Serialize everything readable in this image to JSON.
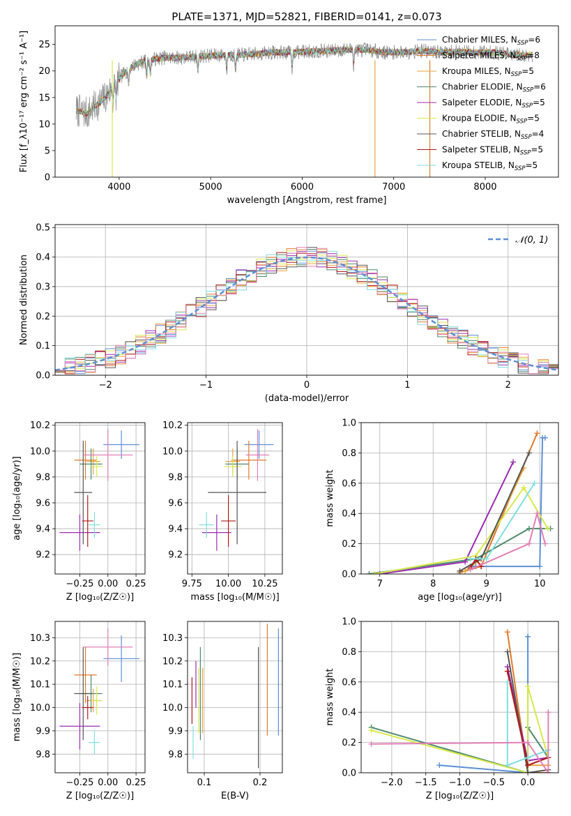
{
  "title": "PLATE=1371, MJD=52821, FIBERID=0141, z=0.073",
  "colors": {
    "chabrier_miles": "#5b8fd6",
    "salpeter_miles": "#e07a2a",
    "kroupa_miles": "#e8a23a",
    "chabrier_elodie": "#4d8a6c",
    "salpeter_elodie": "#9a2bb0",
    "kroupa_elodie": "#d8e84a",
    "chabrier_stelib": "#555555",
    "salpeter_stelib": "#b01818",
    "kroupa_stelib": "#80dede",
    "pink": "#e27fb5",
    "data": "#888888",
    "normal_curve": "#5b8fd6",
    "grid": "#b0b0b0"
  },
  "chart_data": [
    {
      "id": "spectrum",
      "type": "line",
      "xlabel": "wavelength [Angstrom, rest frame]",
      "ylabel": "Flux [f_λ10⁻¹⁷ erg cm⁻² s⁻¹ A⁻¹]",
      "xlim": [
        3300,
        8800
      ],
      "ylim": [
        0,
        28.5
      ],
      "xticks": [
        "4000",
        "5000",
        "6000",
        "7000",
        "8000"
      ],
      "yticks": [
        "0",
        "5",
        "10",
        "15",
        "20",
        "25"
      ],
      "legend_position": "top-right",
      "legend": [
        "Chabrier MILES, N_SSP=6",
        "Salpeter MILES, N_SSP=8",
        "Kroupa MILES, N_SSP=5",
        "Chabrier ELODIE, N_SSP=6",
        "Salpeter ELODIE, N_SSP=5",
        "Kroupa ELODIE, N_SSP=5",
        "Chabrier STELIB, N_SSP=4",
        "Salpeter STELIB, N_SSP=5",
        "Kroupa STELIB, N_SSP=5"
      ],
      "continuum": {
        "x": [
          3550,
          3650,
          3750,
          3850,
          3950,
          4050,
          4150,
          4300,
          4500,
          4700,
          4900,
          5100,
          5300,
          5500,
          5700,
          5900,
          6100,
          6300,
          6500,
          6700,
          6900,
          7100,
          7300,
          7500,
          7700,
          7900,
          8100,
          8300,
          8500
        ],
        "y": [
          12.5,
          12.0,
          13.5,
          15.0,
          17.5,
          19.5,
          21.0,
          22.0,
          22.5,
          22.5,
          22.8,
          23.0,
          23.0,
          23.2,
          23.5,
          23.5,
          23.7,
          23.8,
          24.0,
          24.0,
          23.5,
          23.5,
          23.8,
          23.5,
          23.6,
          23.5,
          23.5,
          23.0,
          23.0
        ]
      }
    },
    {
      "id": "residuals",
      "type": "histogram",
      "xlabel": "(data-model)/error",
      "ylabel": "Normed distribution",
      "xlim": [
        -2.5,
        2.5
      ],
      "ylim": [
        0,
        0.51
      ],
      "xticks": [
        "−2",
        "−1",
        "0",
        "1",
        "2"
      ],
      "yticks": [
        "0.0",
        "0.1",
        "0.2",
        "0.3",
        "0.4",
        "0.5"
      ],
      "legend": [
        "𝒩(0, 1)"
      ],
      "legend_position": "top-right",
      "bin_width": 0.1,
      "n_bins": 50
    },
    {
      "id": "age_vs_Z",
      "type": "errorbar",
      "xlabel": "Z [log₁₀(Z/Z☉)]",
      "ylabel": "age  [log₁₀(age/yr)]",
      "xlim": [
        -0.47,
        0.33
      ],
      "ylim": [
        9.05,
        10.22
      ],
      "xticks": [
        "−0.25",
        "0.00",
        "0.25"
      ],
      "yticks": [
        "9.2",
        "9.4",
        "9.6",
        "9.8",
        "10.0",
        "10.2"
      ],
      "points": [
        {
          "color": "chabrier_miles",
          "x": 0.12,
          "xerr": 0.16,
          "y": 10.05,
          "yerr": 0.11
        },
        {
          "color": "salpeter_miles",
          "x": -0.2,
          "xerr": 0.1,
          "y": 9.93,
          "yerr": 0.15
        },
        {
          "color": "kroupa_miles",
          "x": -0.13,
          "xerr": 0.06,
          "y": 9.92,
          "yerr": 0.1
        },
        {
          "color": "chabrier_elodie",
          "x": -0.15,
          "xerr": 0.1,
          "y": 9.9,
          "yerr": 0.12
        },
        {
          "color": "salpeter_elodie",
          "x": -0.25,
          "xerr": 0.18,
          "y": 9.37,
          "yerr": 0.14
        },
        {
          "color": "kroupa_elodie",
          "x": -0.1,
          "xerr": 0.05,
          "y": 9.88,
          "yerr": 0.08
        },
        {
          "color": "chabrier_stelib",
          "x": -0.22,
          "xerr": 0.08,
          "y": 9.68,
          "yerr": 0.4
        },
        {
          "color": "salpeter_stelib",
          "x": -0.18,
          "xerr": 0.05,
          "y": 9.46,
          "yerr": 0.2
        },
        {
          "color": "kroupa_stelib",
          "x": -0.12,
          "xerr": 0.05,
          "y": 9.43,
          "yerr": 0.1
        },
        {
          "color": "pink",
          "x": 0.0,
          "xerr": 0.22,
          "y": 9.97,
          "yerr": 0.2
        }
      ]
    },
    {
      "id": "age_vs_mass",
      "type": "errorbar",
      "xlabel": "mass [log₁₀(M/M☉)]",
      "ylabel": "",
      "xlim": [
        9.72,
        10.37
      ],
      "ylim": [
        9.05,
        10.22
      ],
      "xticks": [
        "9.75",
        "10.00",
        "10.25"
      ],
      "yticks": [
        "9.2",
        "9.4",
        "9.6",
        "9.8",
        "10.0",
        "10.2"
      ],
      "points": [
        {
          "color": "chabrier_miles",
          "x": 10.21,
          "xerr": 0.1,
          "y": 10.05,
          "yerr": 0.11
        },
        {
          "color": "salpeter_miles",
          "x": 10.14,
          "xerr": 0.12,
          "y": 9.93,
          "yerr": 0.15
        },
        {
          "color": "kroupa_miles",
          "x": 10.03,
          "xerr": 0.05,
          "y": 9.92,
          "yerr": 0.1
        },
        {
          "color": "chabrier_elodie",
          "x": 10.06,
          "xerr": 0.08,
          "y": 9.9,
          "yerr": 0.12
        },
        {
          "color": "salpeter_elodie",
          "x": 9.92,
          "xerr": 0.1,
          "y": 9.37,
          "yerr": 0.14
        },
        {
          "color": "kroupa_elodie",
          "x": 10.03,
          "xerr": 0.06,
          "y": 9.88,
          "yerr": 0.08
        },
        {
          "color": "chabrier_stelib",
          "x": 10.06,
          "xerr": 0.2,
          "y": 9.68,
          "yerr": 0.4
        },
        {
          "color": "salpeter_stelib",
          "x": 10.0,
          "xerr": 0.05,
          "y": 9.46,
          "yerr": 0.2
        },
        {
          "color": "kroupa_stelib",
          "x": 9.85,
          "xerr": 0.05,
          "y": 9.43,
          "yerr": 0.1
        },
        {
          "color": "pink",
          "x": 10.2,
          "xerr": 0.08,
          "y": 9.97,
          "yerr": 0.2
        }
      ]
    },
    {
      "id": "mass_weight_vs_age",
      "type": "line",
      "xlabel": "age  [log₁₀(age/yr)]",
      "ylabel": "mass weight",
      "xlim": [
        6.65,
        10.35
      ],
      "ylim": [
        0,
        1.0
      ],
      "xticks": [
        "7",
        "8",
        "9",
        "10"
      ],
      "yticks": [
        "0.0",
        "0.2",
        "0.4",
        "0.6",
        "0.8",
        "1.0"
      ],
      "series": [
        {
          "color": "chabrier_miles",
          "x": [
            8.7,
            8.8,
            10.0,
            10.05,
            10.1
          ],
          "y": [
            0.05,
            0.05,
            0.05,
            0.9,
            0.9
          ]
        },
        {
          "color": "salpeter_miles",
          "x": [
            8.5,
            8.9,
            9.95
          ],
          "y": [
            0.01,
            0.05,
            0.93
          ]
        },
        {
          "color": "kroupa_miles",
          "x": [
            8.6,
            8.9,
            9.7
          ],
          "y": [
            0.02,
            0.1,
            0.7
          ]
        },
        {
          "color": "chabrier_elodie",
          "x": [
            6.8,
            8.8,
            9.8,
            10.2
          ],
          "y": [
            0.0,
            0.1,
            0.3,
            0.3
          ]
        },
        {
          "color": "salpeter_elodie",
          "x": [
            7.0,
            8.6,
            9.5
          ],
          "y": [
            0.0,
            0.08,
            0.74
          ]
        },
        {
          "color": "kroupa_elodie",
          "x": [
            6.9,
            8.8,
            9.7,
            10.15
          ],
          "y": [
            0.0,
            0.12,
            0.57,
            0.3
          ]
        },
        {
          "color": "chabrier_stelib",
          "x": [
            8.5,
            8.9,
            9.8
          ],
          "y": [
            0.02,
            0.1,
            0.8
          ]
        },
        {
          "color": "salpeter_stelib",
          "x": [
            8.7,
            8.8,
            8.9
          ],
          "y": [
            0.04,
            0.1,
            0.05
          ]
        },
        {
          "color": "kroupa_stelib",
          "x": [
            8.7,
            9.0,
            9.9
          ],
          "y": [
            0.1,
            0.1,
            0.6
          ]
        },
        {
          "color": "pink",
          "x": [
            8.7,
            9.8,
            9.95,
            10.1
          ],
          "y": [
            0.03,
            0.2,
            0.4,
            0.2
          ]
        }
      ]
    },
    {
      "id": "mass_vs_Z",
      "type": "errorbar",
      "xlabel": "Z [log₁₀(Z/Z☉)]",
      "ylabel": "mass [log₁₀(M/M☉)]",
      "xlim": [
        -0.47,
        0.33
      ],
      "ylim": [
        9.72,
        10.37
      ],
      "xticks": [
        "−0.25",
        "0.00",
        "0.25"
      ],
      "yticks": [
        "9.8",
        "9.9",
        "10.0",
        "10.1",
        "10.2",
        "10.3"
      ],
      "points": [
        {
          "color": "chabrier_miles",
          "x": 0.12,
          "xerr": 0.16,
          "y": 10.21,
          "yerr": 0.1
        },
        {
          "color": "salpeter_miles",
          "x": -0.2,
          "xerr": 0.1,
          "y": 10.14,
          "yerr": 0.12
        },
        {
          "color": "kroupa_miles",
          "x": -0.13,
          "xerr": 0.06,
          "y": 10.03,
          "yerr": 0.05
        },
        {
          "color": "chabrier_elodie",
          "x": -0.15,
          "xerr": 0.1,
          "y": 10.06,
          "yerr": 0.08
        },
        {
          "color": "salpeter_elodie",
          "x": -0.25,
          "xerr": 0.18,
          "y": 9.92,
          "yerr": 0.1
        },
        {
          "color": "kroupa_elodie",
          "x": -0.1,
          "xerr": 0.05,
          "y": 10.03,
          "yerr": 0.06
        },
        {
          "color": "chabrier_stelib",
          "x": -0.22,
          "xerr": 0.08,
          "y": 10.06,
          "yerr": 0.2
        },
        {
          "color": "salpeter_stelib",
          "x": -0.18,
          "xerr": 0.05,
          "y": 10.0,
          "yerr": 0.05
        },
        {
          "color": "kroupa_stelib",
          "x": -0.12,
          "xerr": 0.05,
          "y": 9.85,
          "yerr": 0.05
        },
        {
          "color": "pink",
          "x": 0.0,
          "xerr": 0.22,
          "y": 10.26,
          "yerr": 0.08
        }
      ]
    },
    {
      "id": "mass_vs_ebv",
      "type": "errorbar",
      "xlabel": "E(B-V)",
      "ylabel": "",
      "xlim": [
        0.07,
        0.24
      ],
      "ylim": [
        9.72,
        10.37
      ],
      "xticks": [
        "0.1",
        "0.2"
      ],
      "yticks": [
        "9.8",
        "9.9",
        "10.0",
        "10.1",
        "10.2",
        "10.3"
      ],
      "points": [
        {
          "color": "chabrier_miles",
          "x": 0.233,
          "xerr": 0,
          "y": 10.11,
          "yerr": 0.23
        },
        {
          "color": "salpeter_miles",
          "x": 0.213,
          "xerr": 0,
          "y": 10.12,
          "yerr": 0.24
        },
        {
          "color": "kroupa_miles",
          "x": 0.097,
          "xerr": 0,
          "y": 10.03,
          "yerr": 0.14
        },
        {
          "color": "chabrier_elodie",
          "x": 0.093,
          "xerr": 0,
          "y": 10.06,
          "yerr": 0.2
        },
        {
          "color": "salpeter_elodie",
          "x": 0.085,
          "xerr": 0,
          "y": 10.1,
          "yerr": 0.1
        },
        {
          "color": "kroupa_elodie",
          "x": 0.09,
          "xerr": 0,
          "y": 10.03,
          "yerr": 0.14
        },
        {
          "color": "chabrier_stelib",
          "x": 0.197,
          "xerr": 0,
          "y": 10.0,
          "yerr": 0.26
        },
        {
          "color": "salpeter_stelib",
          "x": 0.078,
          "xerr": 0,
          "y": 10.03,
          "yerr": 0.1
        },
        {
          "color": "kroupa_stelib",
          "x": 0.08,
          "xerr": 0,
          "y": 9.85,
          "yerr": 0.07
        }
      ]
    },
    {
      "id": "mass_weight_vs_Z",
      "type": "line",
      "xlabel": "Z [log₁₀(Z/Z☉)]",
      "ylabel": "mass weight",
      "xlim": [
        -2.45,
        0.45
      ],
      "ylim": [
        0,
        1.0
      ],
      "xticks": [
        "−2.0",
        "−1.5",
        "−1.0",
        "−0.5",
        "0.0"
      ],
      "yticks": [
        "0.0",
        "0.2",
        "0.4",
        "0.6",
        "0.8",
        "1.0"
      ],
      "series": [
        {
          "color": "chabrier_miles",
          "x": [
            -1.3,
            0.0,
            0.0,
            0.0
          ],
          "y": [
            0.05,
            0.0,
            0.9,
            0.9
          ]
        },
        {
          "color": "salpeter_miles",
          "x": [
            -0.3,
            0.0,
            0.3
          ],
          "y": [
            0.93,
            0.0,
            0.0
          ]
        },
        {
          "color": "kroupa_miles",
          "x": [
            -0.3,
            0.0,
            0.3
          ],
          "y": [
            0.7,
            0.05,
            0.05
          ]
        },
        {
          "color": "chabrier_elodie",
          "x": [
            -2.3,
            0.0,
            0.0,
            0.3
          ],
          "y": [
            0.3,
            0.0,
            0.3,
            0.1
          ]
        },
        {
          "color": "salpeter_elodie",
          "x": [
            -0.3,
            0.0,
            0.3
          ],
          "y": [
            0.7,
            0.08,
            0.1
          ]
        },
        {
          "color": "kroupa_elodie",
          "x": [
            -2.3,
            0.0,
            0.0,
            0.3
          ],
          "y": [
            0.28,
            0.0,
            0.57,
            0.1
          ]
        },
        {
          "color": "chabrier_stelib",
          "x": [
            -0.3,
            0.0,
            0.3
          ],
          "y": [
            0.8,
            0.0,
            0.02
          ]
        },
        {
          "color": "salpeter_stelib",
          "x": [
            -0.3,
            0.0,
            0.3
          ],
          "y": [
            0.67,
            0.05,
            0.1
          ]
        },
        {
          "color": "kroupa_stelib",
          "x": [
            -0.3,
            -0.3,
            0.0,
            0.3
          ],
          "y": [
            0.6,
            0.05,
            0.1,
            0.15
          ]
        },
        {
          "color": "pink",
          "x": [
            -2.3,
            0.0,
            0.3,
            0.3
          ],
          "y": [
            0.19,
            0.2,
            0.0,
            0.4
          ]
        }
      ]
    }
  ]
}
